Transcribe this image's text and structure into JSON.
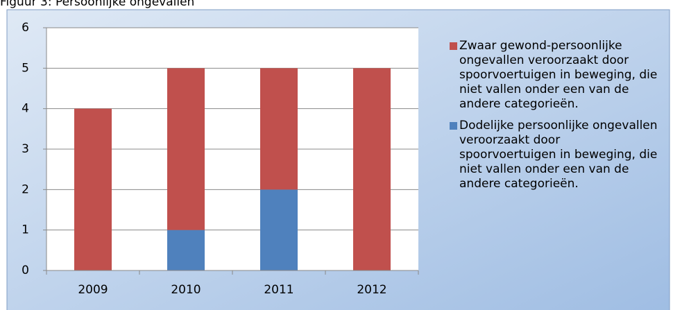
{
  "chart_data": {
    "type": "stacked_bar",
    "title": "Figuur 3: Persoonlijke ongevallen",
    "categories": [
      "2009",
      "2010",
      "2011",
      "2012"
    ],
    "series": [
      {
        "name": "Dodelijke persoonlijke ongevallen veroorzaakt door spoorvoertuigen in beweging, die niet vallen onder een van de andere categorieën.",
        "color": "#4f81bd",
        "values": [
          0,
          1,
          2,
          0
        ]
      },
      {
        "name": "Zwaar gewond-persoonlijke ongevallen veroorzaakt door spoorvoertuigen in beweging, die niet vallen onder een van de andere categorieën.",
        "color": "#c0504d",
        "values": [
          4,
          4,
          3,
          5
        ]
      }
    ],
    "ylim": [
      0,
      6
    ],
    "yticks": [
      0,
      1,
      2,
      3,
      4,
      5,
      6
    ],
    "grid": true,
    "legend": "right"
  }
}
